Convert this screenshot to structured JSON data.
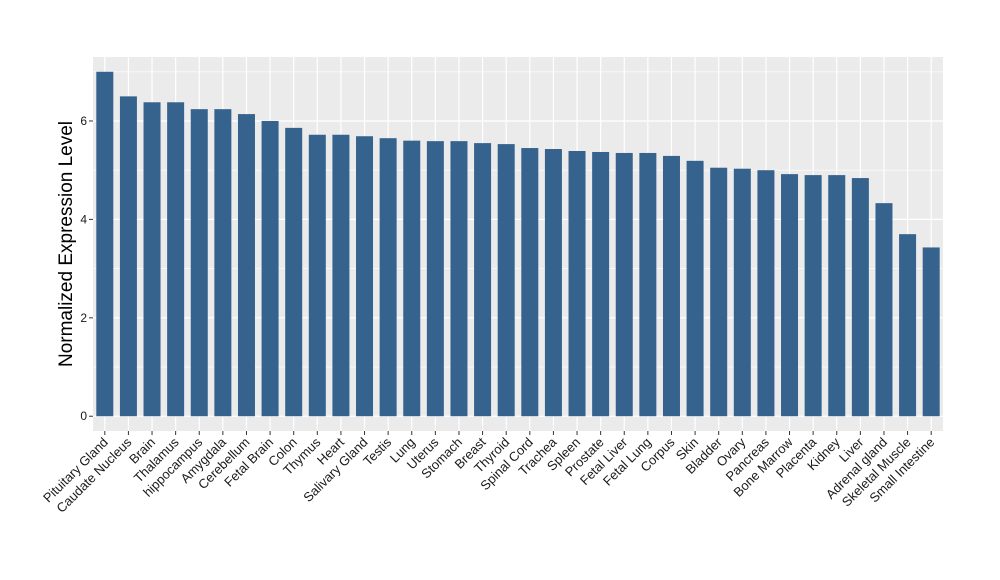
{
  "chart_data": {
    "type": "bar",
    "title": "",
    "xlabel": "",
    "ylabel": "Normalized Expression Level",
    "ylim": [
      -0.3,
      7.3
    ],
    "yticks": [
      0,
      2,
      4,
      6
    ],
    "grid": true,
    "bar_color": "#35638d",
    "panel_color": "#ebebeb",
    "grid_color": "#ffffff",
    "categories": [
      "Pituitary Gland",
      "Caudate Nucleus",
      "Brain",
      "Thalamus",
      "hippocampus",
      "Amygdala",
      "Cerebellum",
      "Fetal Brain",
      "Colon",
      "Thymus",
      "Heart",
      "Salivary Gland",
      "Testis",
      "Lung",
      "Uterus",
      "Stomach",
      "Breast",
      "Thyroid",
      "Spinal Cord",
      "Trachea",
      "Spleen",
      "Prostate",
      "Fetal Liver",
      "Fetal Lung",
      "Corpus",
      "Skin",
      "Bladder",
      "Ovary",
      "Pancreas",
      "Bone Marrow",
      "Placenta",
      "Kidney",
      "Liver",
      "Adrenal gland",
      "Skeletal Muscle",
      "Small Intestine"
    ],
    "values": [
      7.0,
      6.5,
      6.38,
      6.38,
      6.24,
      6.24,
      6.14,
      6.0,
      5.86,
      5.72,
      5.72,
      5.69,
      5.65,
      5.6,
      5.59,
      5.59,
      5.55,
      5.53,
      5.45,
      5.43,
      5.39,
      5.37,
      5.35,
      5.35,
      5.29,
      5.19,
      5.05,
      5.03,
      5.0,
      4.92,
      4.9,
      4.9,
      4.84,
      4.33,
      3.7,
      3.43
    ]
  }
}
